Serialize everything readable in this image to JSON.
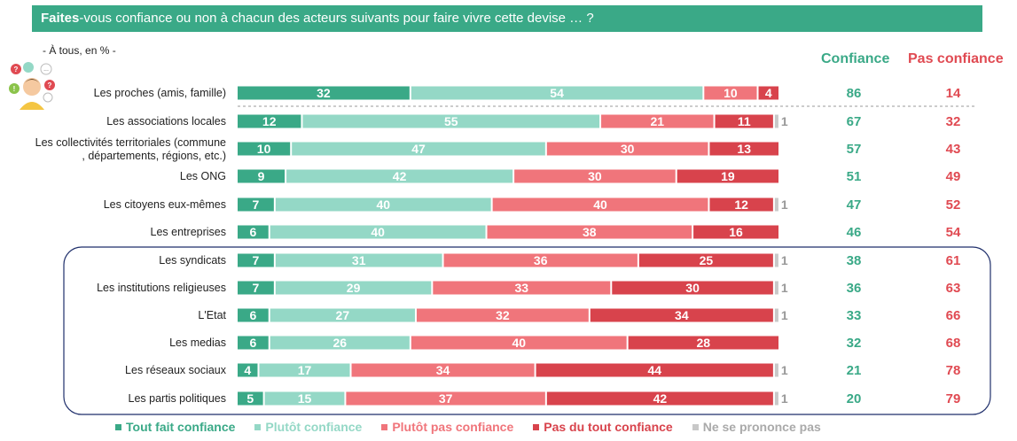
{
  "header": {
    "title_bold": "Faites",
    "title_rest": "-vous confiance ou non à chacun des acteurs suivants pour faire vivre cette devise … ?",
    "subtitle": "- À tous, en % -",
    "col_confiance": "Confiance",
    "col_pas_confiance": "Pas confiance"
  },
  "colors": {
    "tout_fait": "#3aa987",
    "plutot": "#94d8c6",
    "plutot_pas": "#f0757b",
    "pas_du_tout": "#d8434c",
    "nsp": "#c8c8c8",
    "confiance_text": "#3aa987",
    "pas_confiance_text": "#e04a52"
  },
  "chart_data": {
    "type": "bar",
    "orientation": "horizontal-stacked",
    "categories": [
      "Les proches (amis, famille)",
      "Les associations locales",
      "Les collectivités territoriales (communes, départements, régions, etc.)",
      "Les ONG",
      "Les citoyens eux-mêmes",
      "Les entreprises",
      "Les syndicats",
      "Les institutions religieuses",
      "L'Etat",
      "Les medias",
      "Les réseaux sociaux",
      "Les partis politiques"
    ],
    "series": [
      {
        "name": "Tout fait confiance",
        "values": [
          32,
          12,
          10,
          9,
          7,
          6,
          7,
          7,
          6,
          6,
          4,
          5
        ]
      },
      {
        "name": "Plutôt confiance",
        "values": [
          54,
          55,
          47,
          42,
          40,
          40,
          31,
          29,
          27,
          26,
          17,
          15
        ]
      },
      {
        "name": "Plutôt pas confiance",
        "values": [
          10,
          21,
          30,
          30,
          40,
          38,
          36,
          33,
          32,
          40,
          34,
          37
        ]
      },
      {
        "name": "Pas du tout confiance",
        "values": [
          4,
          11,
          13,
          19,
          12,
          16,
          25,
          30,
          34,
          28,
          44,
          42
        ]
      },
      {
        "name": "Ne se prononce pas",
        "values": [
          0,
          1,
          0,
          0,
          1,
          0,
          1,
          1,
          1,
          0,
          1,
          1
        ]
      }
    ],
    "confiance": [
      86,
      67,
      57,
      51,
      47,
      46,
      38,
      36,
      33,
      32,
      21,
      20
    ],
    "pas_confiance": [
      14,
      32,
      43,
      49,
      52,
      54,
      61,
      63,
      66,
      68,
      78,
      79
    ],
    "unit": "%",
    "legend_position": "bottom"
  }
}
